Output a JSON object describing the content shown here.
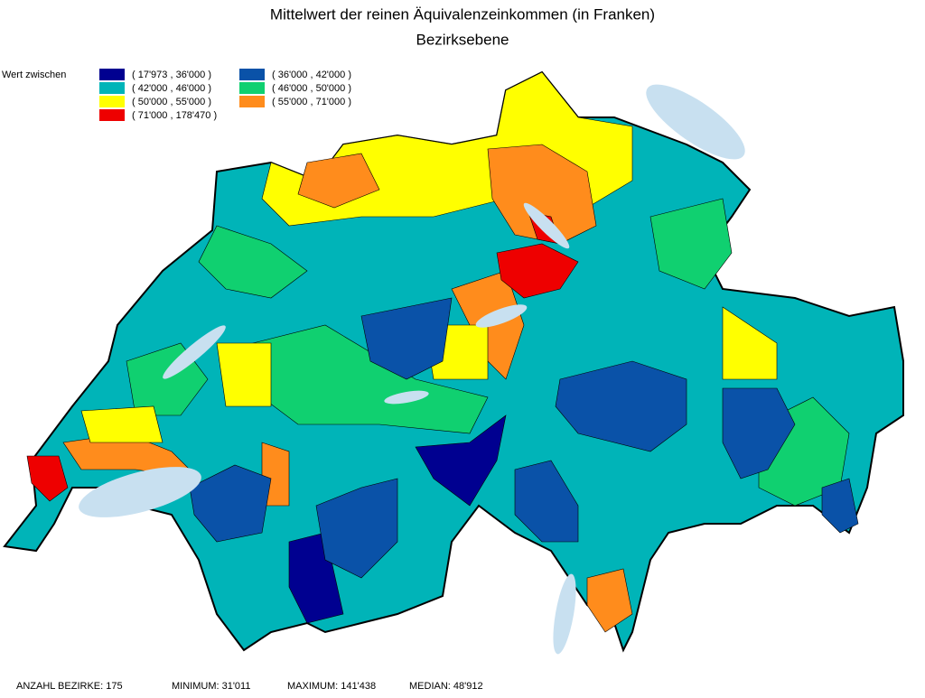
{
  "header": {
    "title": "Mittelwert der reinen Äquivalenzeinkommen (in Franken)",
    "subtitle": "Bezirksebene"
  },
  "legend": {
    "label": "Wert zwischen",
    "items": [
      {
        "label": "( 17'973 , 36'000 )",
        "color": "#000090"
      },
      {
        "label": "( 36'000 , 42'000 )",
        "color": "#0a52a8"
      },
      {
        "label": "( 42'000 , 46'000 )",
        "color": "#00b4b8"
      },
      {
        "label": "( 46'000 , 50'000 )",
        "color": "#10d070"
      },
      {
        "label": "( 50'000 , 55'000 )",
        "color": "#ffff00"
      },
      {
        "label": "( 55'000 , 71'000 )",
        "color": "#ff8c1c"
      },
      {
        "label": "( 71'000 , 178'470 )",
        "color": "#ee0000"
      }
    ]
  },
  "footer": [
    "ANZAHL BEZIRKE: 175",
    "MINIMUM: 31'011",
    "MAXIMUM: 141'438",
    "MEDIAN: 48'912"
  ]
}
